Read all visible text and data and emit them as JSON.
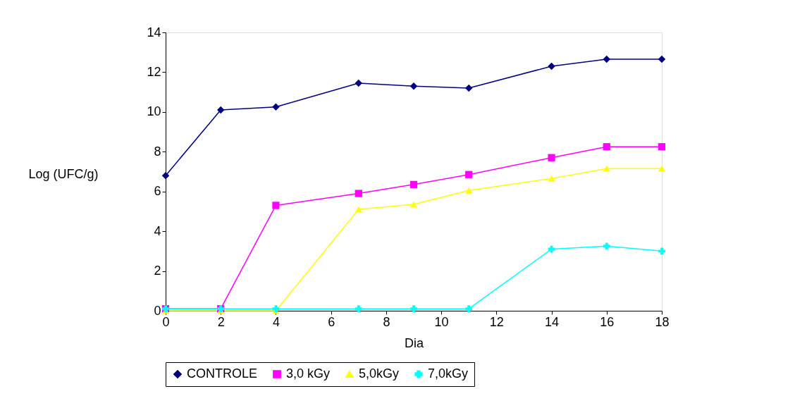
{
  "chart_data": {
    "type": "line",
    "xlabel": "Dia",
    "ylabel": "Log (UFC/g)",
    "x": [
      0,
      2,
      4,
      7,
      9,
      11,
      14,
      16,
      18
    ],
    "xlim": [
      0,
      18
    ],
    "xticks": [
      0,
      2,
      4,
      6,
      8,
      10,
      12,
      14,
      16,
      18
    ],
    "ylim": [
      0,
      14
    ],
    "yticks": [
      0,
      2,
      4,
      6,
      8,
      10,
      12,
      14
    ],
    "grid": false,
    "legend": "bottom",
    "line_style": "solid",
    "series": [
      {
        "name": "CONTROLE",
        "color": "#000080",
        "marker": "diamond",
        "values": [
          6.8,
          10.1,
          10.25,
          11.45,
          11.3,
          11.2,
          12.3,
          12.65,
          12.65
        ]
      },
      {
        "name": "3,0 kGy",
        "color": "#ff00ff",
        "marker": "square",
        "values": [
          0.1,
          0.1,
          5.3,
          5.9,
          6.35,
          6.85,
          7.7,
          8.25,
          8.25
        ]
      },
      {
        "name": "5,0kGy",
        "color": "#ffff00",
        "marker": "triangle",
        "values": [
          0,
          0,
          0,
          5.1,
          5.35,
          6.05,
          6.65,
          7.15,
          7.15
        ]
      },
      {
        "name": "7,0kGy",
        "color": "#00ffff",
        "marker": "cross",
        "values": [
          0.1,
          0.1,
          0.1,
          0.1,
          0.1,
          0.1,
          3.1,
          3.25,
          3.0
        ]
      }
    ]
  }
}
